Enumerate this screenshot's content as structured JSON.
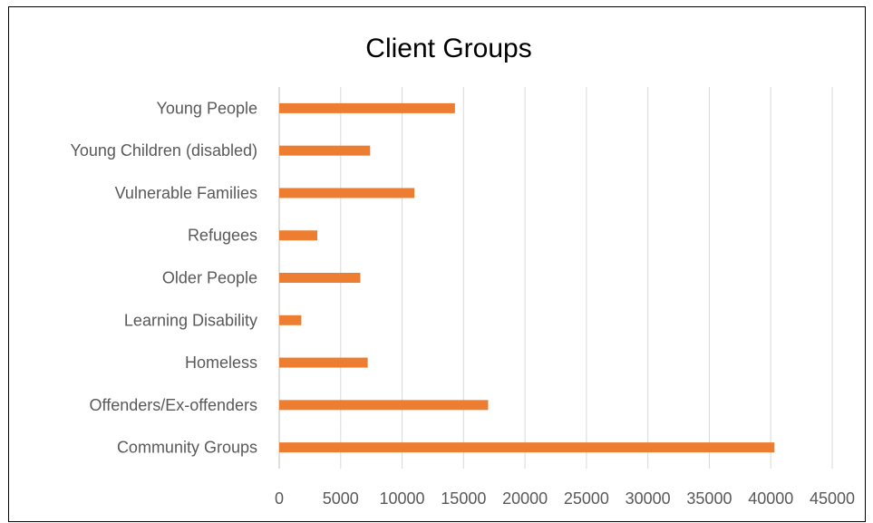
{
  "chart_data": {
    "type": "bar",
    "orientation": "horizontal",
    "title": "Client Groups",
    "xlabel": "",
    "ylabel": "",
    "categories": [
      "Young People",
      "Young Children (disabled)",
      "Vulnerable Families",
      "Refugees",
      "Older People",
      "Learning Disability",
      "Homeless",
      "Offenders/Ex-offenders",
      "Community Groups"
    ],
    "values": [
      14300,
      7400,
      11000,
      3100,
      6600,
      1800,
      7200,
      17000,
      40300
    ],
    "xlim": [
      0,
      45000
    ],
    "x_ticks": [
      0,
      5000,
      10000,
      15000,
      20000,
      25000,
      30000,
      35000,
      40000,
      45000
    ],
    "x_tick_labels": [
      "0",
      "5000",
      "10000",
      "15000",
      "20000",
      "25000",
      "30000",
      "35000",
      "40000",
      "45000"
    ],
    "grid": "vertical",
    "legend": "none",
    "colors": {
      "bar": "#ED7D31",
      "grid": "#D9D9D9",
      "axis": "#BFBFBF",
      "label": "#595959",
      "title": "#000000"
    }
  }
}
